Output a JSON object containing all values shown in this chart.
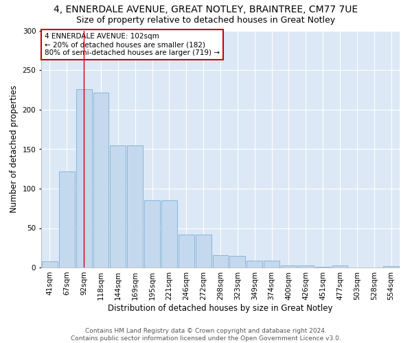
{
  "title1": "4, ENNERDALE AVENUE, GREAT NOTLEY, BRAINTREE, CM77 7UE",
  "title2": "Size of property relative to detached houses in Great Notley",
  "xlabel": "Distribution of detached houses by size in Great Notley",
  "ylabel": "Number of detached properties",
  "categories": [
    "41sqm",
    "67sqm",
    "92sqm",
    "118sqm",
    "144sqm",
    "169sqm",
    "195sqm",
    "221sqm",
    "246sqm",
    "272sqm",
    "298sqm",
    "323sqm",
    "349sqm",
    "374sqm",
    "400sqm",
    "426sqm",
    "451sqm",
    "477sqm",
    "503sqm",
    "528sqm",
    "554sqm"
  ],
  "values": [
    8,
    122,
    226,
    222,
    155,
    155,
    85,
    85,
    42,
    42,
    16,
    15,
    9,
    9,
    3,
    3,
    1,
    3,
    0,
    0,
    2
  ],
  "bar_color": "#c5d9ee",
  "bar_edge_color": "#7badd4",
  "vline_x": 2,
  "vline_color": "#cc0000",
  "annotation_text": "4 ENNERDALE AVENUE: 102sqm\n← 20% of detached houses are smaller (182)\n80% of semi-detached houses are larger (719) →",
  "ylim": [
    0,
    300
  ],
  "yticks": [
    0,
    50,
    100,
    150,
    200,
    250,
    300
  ],
  "bg_color": "#dce8f5",
  "footer_text": "Contains HM Land Registry data © Crown copyright and database right 2024.\nContains public sector information licensed under the Open Government Licence v3.0.",
  "title1_fontsize": 10,
  "title2_fontsize": 9,
  "xlabel_fontsize": 8.5,
  "ylabel_fontsize": 8.5,
  "tick_fontsize": 7.5,
  "annotation_fontsize": 7.5,
  "footer_fontsize": 6.5
}
